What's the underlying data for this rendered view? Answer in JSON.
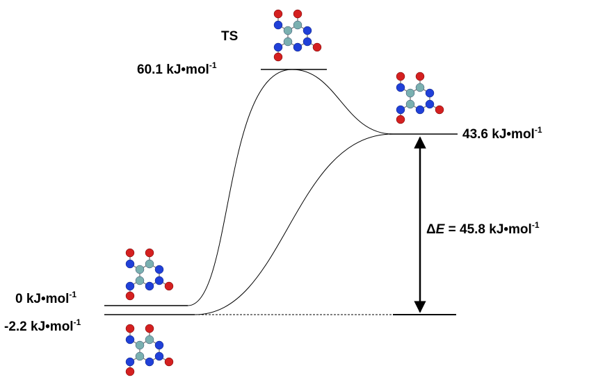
{
  "levels": [
    {
      "value": "0 kJ•mol",
      "sup": "-1"
    },
    {
      "value": "-2.2 kJ•mol",
      "sup": "-1"
    },
    {
      "value": "60.1 kJ•mol",
      "sup": "-1"
    },
    {
      "value": "43.6 kJ•mol",
      "sup": "-1"
    }
  ],
  "ts_label": "TS",
  "delta": {
    "symbol": "Δ",
    "variable": "E",
    "text": " = 45.8 kJ•mol",
    "sup": "-1"
  }
}
